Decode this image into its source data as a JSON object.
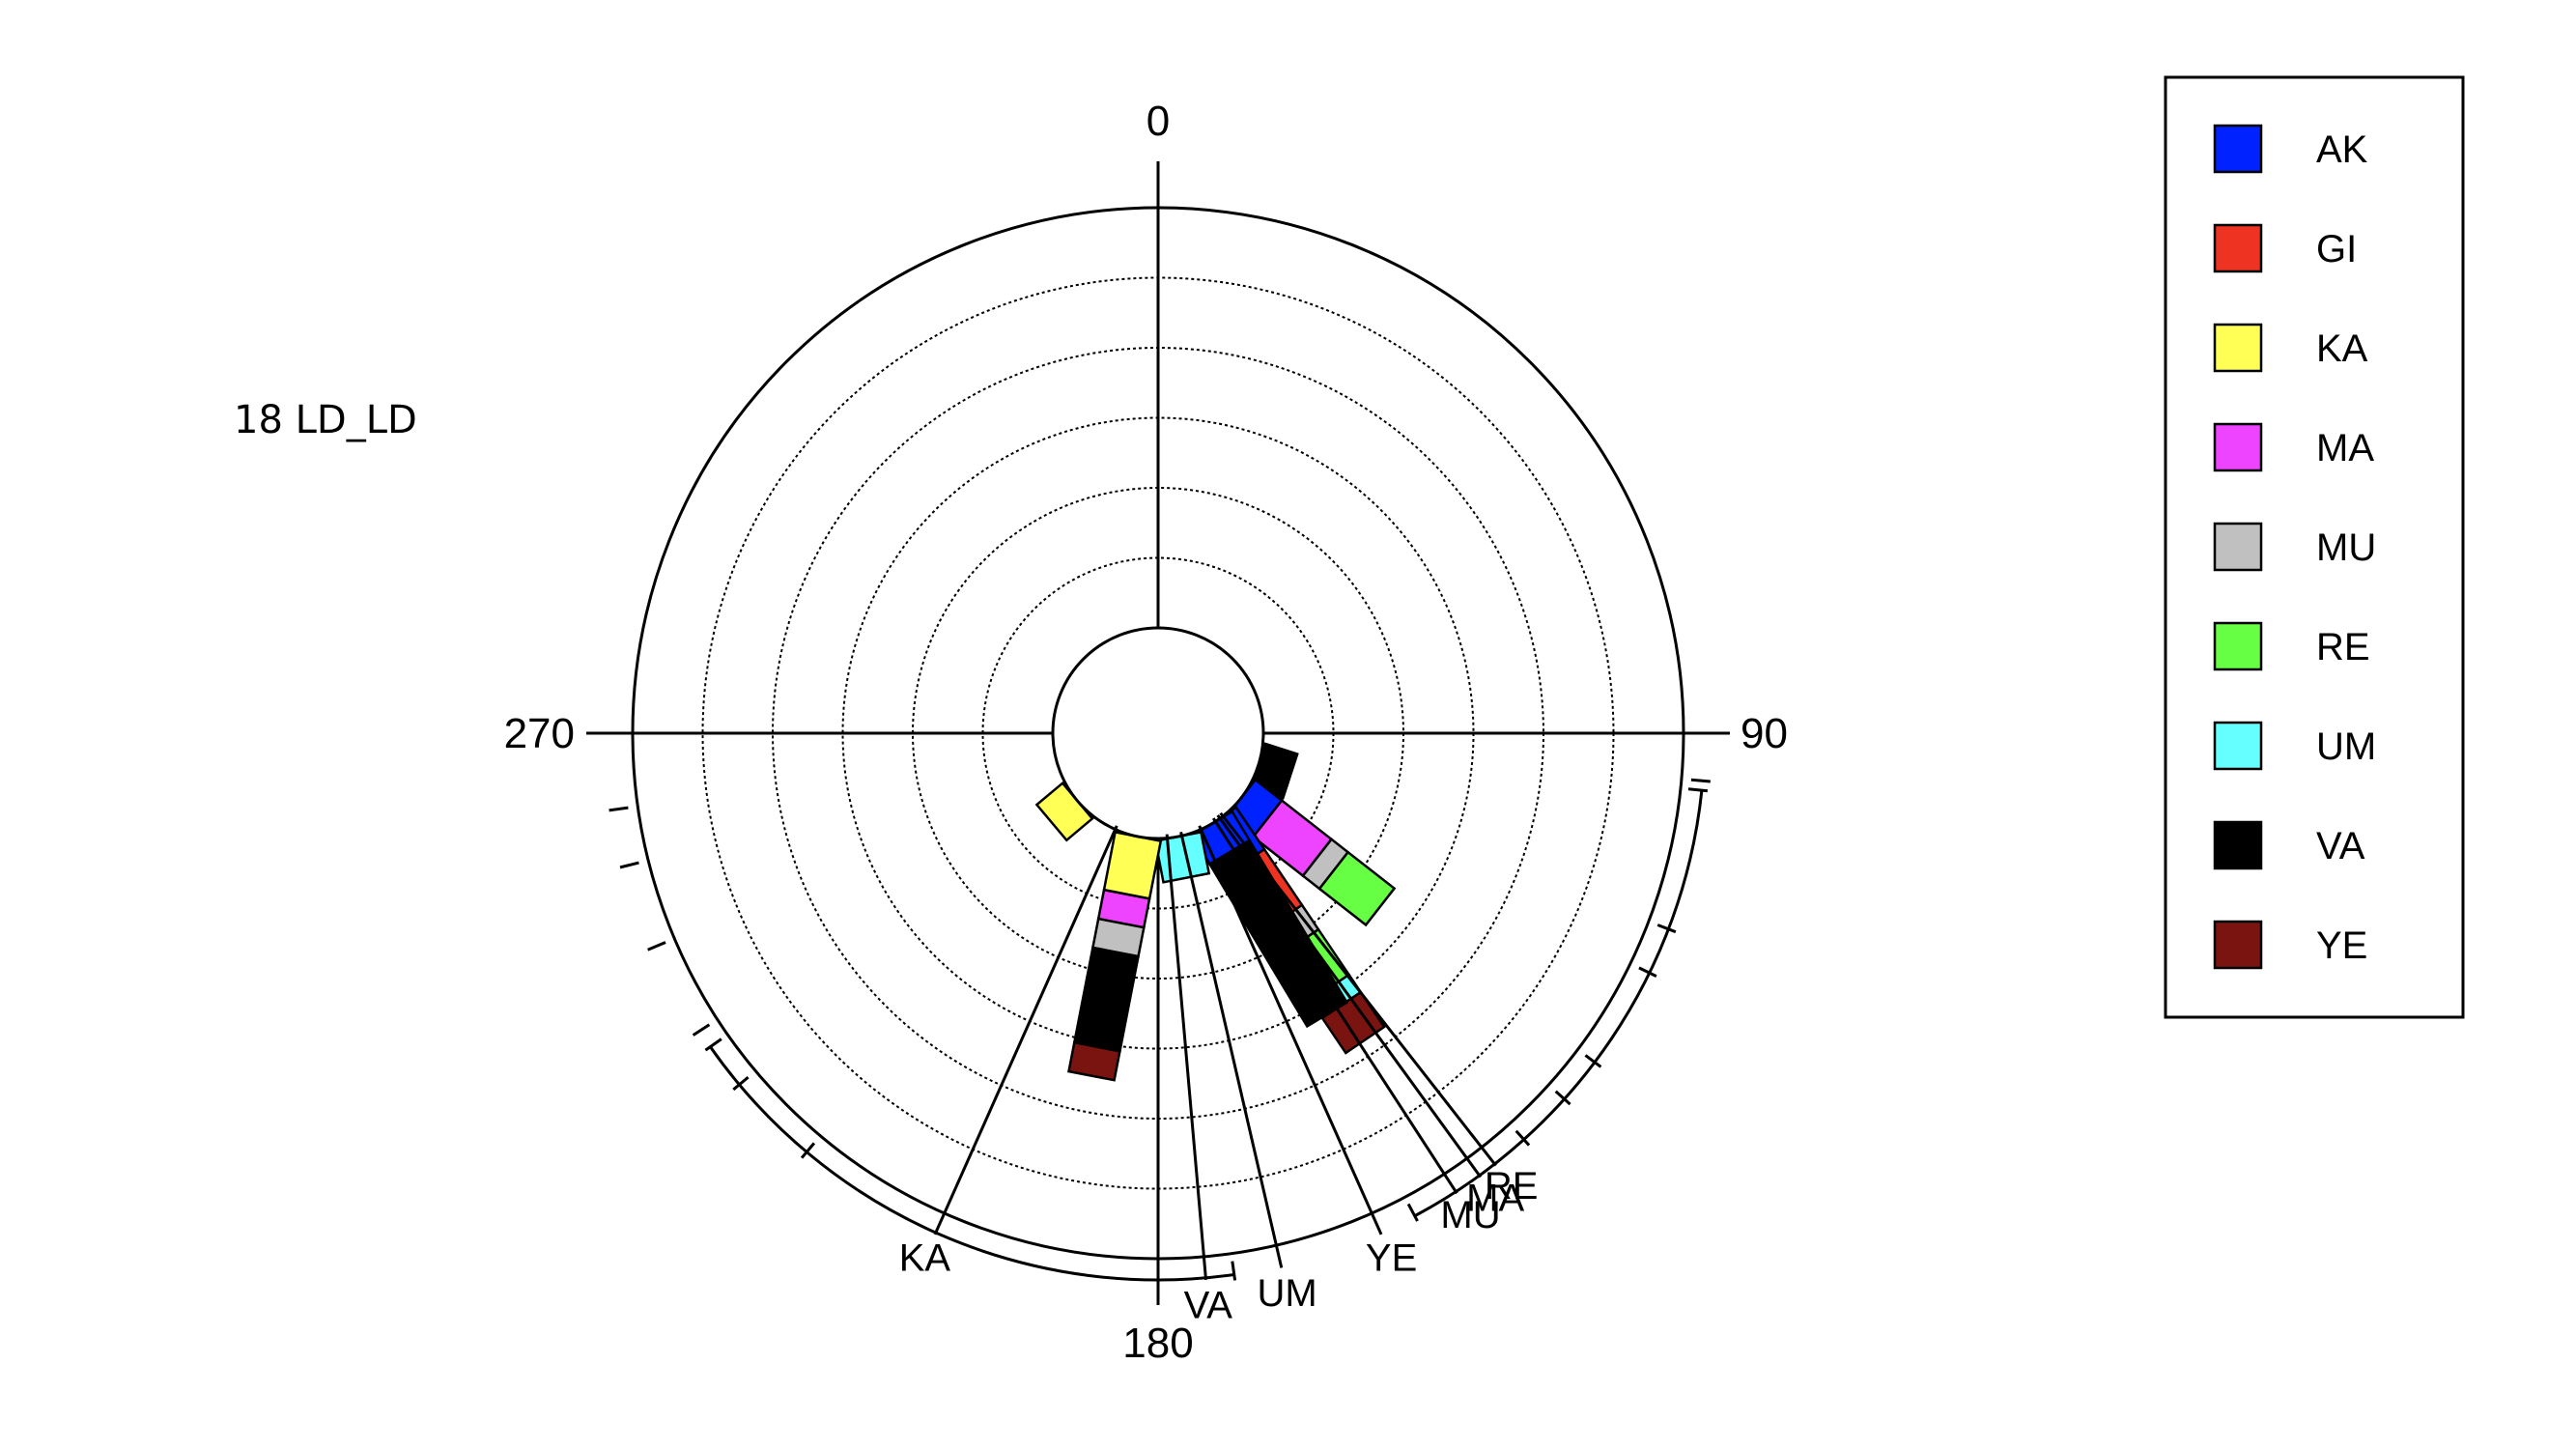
{
  "chart_data": {
    "type": "polar-stacked-bar",
    "side_label": "18 LD_LD",
    "angle_tick_labels": [
      "0",
      "90",
      "180",
      "270"
    ],
    "radial_range": [
      0,
      100
    ],
    "rings": 6,
    "grid": true,
    "legend_position": "right",
    "legend": [
      {
        "name": "AK",
        "color": "#0022ff"
      },
      {
        "name": "GI",
        "color": "#ee3322"
      },
      {
        "name": "KA",
        "color": "#ffff55"
      },
      {
        "name": "MA",
        "color": "#ee44ff"
      },
      {
        "name": "MU",
        "color": "#c0c0c0"
      },
      {
        "name": "RE",
        "color": "#66ff44"
      },
      {
        "name": "UM",
        "color": "#66ffff"
      },
      {
        "name": "VA",
        "color": "#000000"
      },
      {
        "name": "YE",
        "color": "#7a1410"
      }
    ],
    "bars": [
      {
        "angle": 108,
        "segments": [
          {
            "name": "VA",
            "value": 8
          }
        ]
      },
      {
        "angle": 128,
        "segments": [
          {
            "name": "AK",
            "value": 8
          },
          {
            "name": "MA",
            "value": 15
          },
          {
            "name": "MU",
            "value": 5
          },
          {
            "name": "RE",
            "value": 14
          }
        ]
      },
      {
        "angle": 146,
        "segments": [
          {
            "name": "AK",
            "value": 12
          },
          {
            "name": "GI",
            "value": 16
          },
          {
            "name": "MU",
            "value": 7
          },
          {
            "name": "RE",
            "value": 13
          },
          {
            "name": "UM",
            "value": 5
          },
          {
            "name": "YE",
            "value": 10
          }
        ]
      },
      {
        "angle": 149,
        "segments": [
          {
            "name": "AK",
            "value": 8
          },
          {
            "name": "VA",
            "value": 45
          }
        ]
      },
      {
        "angle": 169,
        "segments": [
          {
            "name": "UM",
            "value": 10
          }
        ]
      },
      {
        "angle": 191,
        "segments": [
          {
            "name": "KA",
            "value": 14
          },
          {
            "name": "MA",
            "value": 7
          },
          {
            "name": "MU",
            "value": 7
          },
          {
            "name": "VA",
            "value": 23
          },
          {
            "name": "YE",
            "value": 7
          }
        ]
      },
      {
        "angle": 230,
        "segments": [
          {
            "name": "KA",
            "value": 8
          }
        ]
      }
    ],
    "rays": [
      {
        "label": "KA",
        "angle": 204,
        "tick_angles": [
          220,
          230,
          237,
          247,
          256,
          262
        ]
      },
      {
        "label": "VA",
        "angle": 175
      },
      {
        "label": "UM",
        "angle": 167
      },
      {
        "label": "YE",
        "angle": 156
      },
      {
        "label": "MU",
        "angle": 147
      },
      {
        "label": "MA",
        "angle": 144
      },
      {
        "label": "RE",
        "angle": 142,
        "tick_angles": [
          95,
          111,
          116,
          127,
          132,
          138
        ]
      }
    ],
    "arcs": [
      {
        "start": 172,
        "end": 235
      },
      {
        "start": 96,
        "end": 152
      }
    ]
  }
}
